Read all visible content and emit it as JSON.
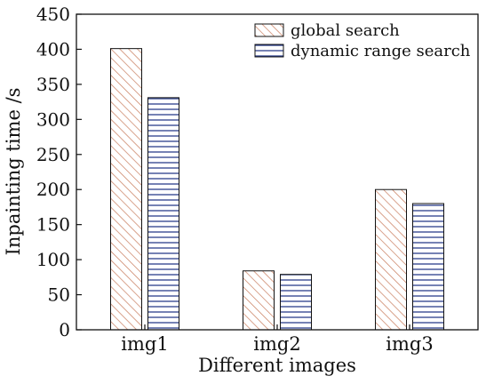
{
  "chart_data": {
    "type": "bar",
    "categories": [
      "img1",
      "img2",
      "img3"
    ],
    "series": [
      {
        "name": "global search",
        "values": [
          401,
          84,
          200
        ],
        "color": "#c87c5c",
        "pattern": "diagonal-hatch"
      },
      {
        "name": "dynamic range search",
        "values": [
          331,
          79,
          180
        ],
        "color": "#2b3f8c",
        "pattern": "horizontal-lines"
      }
    ],
    "xlabel": "Different images",
    "ylabel": "Inpainting time /s",
    "ylim": [
      0,
      450
    ],
    "yticks": [
      0,
      50,
      100,
      150,
      200,
      250,
      300,
      350,
      400,
      450
    ],
    "grid": false,
    "legend_position": "top-right"
  }
}
